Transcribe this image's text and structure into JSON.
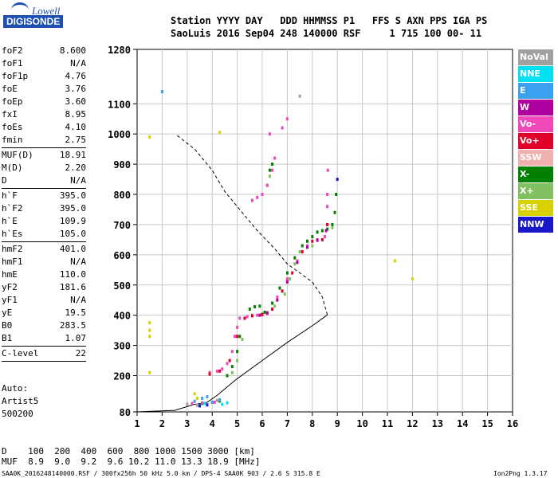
{
  "logo": {
    "line1": "Lowell",
    "line2": "DIGISONDE"
  },
  "header": {
    "row1": "Station YYYY DAY   DDD HHMMSS P1   FFS S AXN PPS IGA PS",
    "row2": "SaoLuis 2016 Sep04 248 140000 RSF     1 715 100 00- 11"
  },
  "params": [
    {
      "label": "foF2",
      "value": "8.600"
    },
    {
      "label": "foF1",
      "value": "N/A"
    },
    {
      "label": "foF1p",
      "value": "4.76"
    },
    {
      "label": "foE",
      "value": "3.76"
    },
    {
      "label": "foEp",
      "value": "3.60"
    },
    {
      "label": "fxI",
      "value": "8.95"
    },
    {
      "label": "foEs",
      "value": "4.10"
    },
    {
      "label": "fmin",
      "value": "2.75"
    },
    {
      "sep": true
    },
    {
      "label": "MUF(D)",
      "value": "18.91"
    },
    {
      "label": "M(D)",
      "value": "2.20"
    },
    {
      "label": "D",
      "value": "N/A"
    },
    {
      "sep": true
    },
    {
      "label": "h`F",
      "value": "395.0"
    },
    {
      "label": "h`F2",
      "value": "395.0"
    },
    {
      "label": "h`E",
      "value": "109.9"
    },
    {
      "label": "h`Es",
      "value": "105.0"
    },
    {
      "sep": true
    },
    {
      "label": "hmF2",
      "value": "401.0"
    },
    {
      "label": "hmF1",
      "value": "N/A"
    },
    {
      "label": "hmE",
      "value": "110.0"
    },
    {
      "label": "yF2",
      "value": "181.6"
    },
    {
      "label": "yF1",
      "value": "N/A"
    },
    {
      "label": "yE",
      "value": "19.5"
    },
    {
      "label": "B0",
      "value": "283.5"
    },
    {
      "label": "B1",
      "value": "1.07"
    },
    {
      "sep": true
    },
    {
      "label": "C-level",
      "value": "22"
    },
    {
      "sep": true
    }
  ],
  "auto": {
    "line1": "Auto:",
    "line2": "Artist5",
    "line3": "500200"
  },
  "legend": [
    {
      "label": "NoVal",
      "color": "#a0a0a0"
    },
    {
      "label": "NNE",
      "color": "#00e0f0"
    },
    {
      "label": "E",
      "color": "#3aa0f0"
    },
    {
      "label": "W",
      "color": "#b000a0"
    },
    {
      "label": "Vo-",
      "color": "#f048b8"
    },
    {
      "label": "Vo+",
      "color": "#e00028"
    },
    {
      "label": "SSW",
      "color": "#f0b0b0"
    },
    {
      "label": "X-",
      "color": "#008000"
    },
    {
      "label": "X+",
      "color": "#80c060"
    },
    {
      "label": "SSE",
      "color": "#d8d000"
    },
    {
      "label": "NNW",
      "color": "#1818c8"
    }
  ],
  "footer": {
    "row1": "D    100  200  400  600  800 1000 1500 3000 [km]",
    "row2": "MUF  8.9  9.0  9.2  9.6 10.2 11.0 13.3 18.9 [MHz]",
    "file": "SAA0K_2016248140000.RSF / 300fx256h 50 kHz 5.0 km / DPS-4 SAA0K 903 / 2.6 S 315.8 E",
    "version": "Ion2Png 1.3.17"
  },
  "chart_data": {
    "type": "scatter",
    "x_ticks": [
      "1",
      "2",
      "3",
      "4",
      "5",
      "6",
      "7",
      "8",
      "9",
      "10",
      "11",
      "12",
      "13",
      "14",
      "15",
      "16"
    ],
    "y_ticks": [
      "80",
      "200",
      "300",
      "400",
      "500",
      "600",
      "700",
      "800",
      "900",
      "1000",
      "1100",
      "1280"
    ],
    "xlim": [
      1,
      16
    ],
    "ylim": [
      80,
      1280
    ],
    "grid": true,
    "series": [
      {
        "name": "X-",
        "color": "#008000",
        "points": [
          [
            3.6,
            108
          ],
          [
            4.0,
            112
          ],
          [
            4.3,
            116
          ],
          [
            4.6,
            200
          ],
          [
            4.8,
            230
          ],
          [
            5.0,
            280
          ],
          [
            5.1,
            330
          ],
          [
            5.3,
            390
          ],
          [
            5.5,
            420
          ],
          [
            5.7,
            428
          ],
          [
            5.9,
            430
          ],
          [
            6.1,
            410
          ],
          [
            6.4,
            440
          ],
          [
            6.7,
            490
          ],
          [
            7.0,
            540
          ],
          [
            7.3,
            590
          ],
          [
            7.6,
            630
          ],
          [
            7.8,
            645
          ],
          [
            8.0,
            660
          ],
          [
            8.2,
            675
          ],
          [
            8.4,
            680
          ],
          [
            8.6,
            685
          ],
          [
            8.8,
            700
          ],
          [
            8.9,
            740
          ],
          [
            8.95,
            800
          ],
          [
            6.3,
            880
          ],
          [
            6.4,
            900
          ]
        ]
      },
      {
        "name": "X+",
        "color": "#80c060",
        "points": [
          [
            4.8,
            210
          ],
          [
            5.0,
            250
          ],
          [
            5.2,
            320
          ],
          [
            5.6,
            400
          ],
          [
            6.0,
            405
          ],
          [
            6.5,
            430
          ],
          [
            6.9,
            470
          ],
          [
            7.1,
            520
          ],
          [
            7.3,
            570
          ],
          [
            7.5,
            610
          ],
          [
            8.0,
            630
          ],
          [
            8.5,
            660
          ],
          [
            8.8,
            690
          ],
          [
            6.2,
            830
          ],
          [
            6.3,
            860
          ]
        ]
      },
      {
        "name": "Vo-",
        "color": "#f048b8",
        "points": [
          [
            3.2,
            108
          ],
          [
            3.6,
            110
          ],
          [
            4.1,
            112
          ],
          [
            3.9,
            210
          ],
          [
            4.2,
            215
          ],
          [
            4.4,
            222
          ],
          [
            4.6,
            240
          ],
          [
            4.8,
            280
          ],
          [
            4.9,
            330
          ],
          [
            5.0,
            360
          ],
          [
            5.1,
            390
          ],
          [
            5.4,
            395
          ],
          [
            5.8,
            400
          ],
          [
            6.2,
            405
          ],
          [
            6.6,
            460
          ],
          [
            7.0,
            520
          ],
          [
            7.4,
            580
          ],
          [
            7.8,
            630
          ],
          [
            8.2,
            650
          ],
          [
            8.5,
            660
          ],
          [
            8.6,
            700
          ],
          [
            8.6,
            760
          ],
          [
            8.6,
            800
          ],
          [
            8.62,
            880
          ],
          [
            5.6,
            780
          ],
          [
            5.8,
            790
          ],
          [
            6.0,
            800
          ],
          [
            6.2,
            830
          ],
          [
            6.4,
            880
          ],
          [
            6.5,
            920
          ],
          [
            6.8,
            1020
          ],
          [
            7.0,
            1050
          ],
          [
            6.3,
            1000
          ]
        ]
      },
      {
        "name": "Vo+",
        "color": "#e00028",
        "points": [
          [
            3.9,
            205
          ],
          [
            4.3,
            215
          ],
          [
            4.7,
            250
          ],
          [
            5.0,
            330
          ],
          [
            5.3,
            390
          ],
          [
            5.6,
            398
          ],
          [
            6.0,
            402
          ],
          [
            6.4,
            420
          ],
          [
            6.8,
            480
          ],
          [
            7.2,
            540
          ],
          [
            7.6,
            610
          ],
          [
            8.0,
            645
          ],
          [
            8.4,
            650
          ],
          [
            8.6,
            700
          ]
        ]
      },
      {
        "name": "W",
        "color": "#b000a0",
        "points": [
          [
            5.9,
            400
          ],
          [
            6.2,
            408
          ],
          [
            6.6,
            450
          ],
          [
            7.0,
            510
          ],
          [
            7.4,
            575
          ],
          [
            7.8,
            625
          ],
          [
            8.2,
            648
          ],
          [
            8.55,
            680
          ]
        ]
      },
      {
        "name": "E",
        "color": "#3aa0f0",
        "points": [
          [
            3.3,
            115
          ],
          [
            3.6,
            125
          ],
          [
            3.8,
            130
          ],
          [
            4.0,
            112
          ],
          [
            4.3,
            120
          ],
          [
            2.0,
            1140
          ]
        ]
      },
      {
        "name": "SSE",
        "color": "#d8d000",
        "points": [
          [
            1.5,
            210
          ],
          [
            1.5,
            330
          ],
          [
            1.5,
            350
          ],
          [
            1.5,
            375
          ],
          [
            1.5,
            990
          ],
          [
            3.3,
            140
          ],
          [
            3.4,
            125
          ],
          [
            11.3,
            580
          ],
          [
            12.0,
            520
          ],
          [
            4.3,
            1005
          ]
        ]
      },
      {
        "name": "NNW",
        "color": "#1818c8",
        "points": [
          [
            3.5,
            100
          ],
          [
            3.8,
            103
          ],
          [
            9.0,
            850
          ]
        ]
      },
      {
        "name": "NNE",
        "color": "#00e0f0",
        "points": [
          [
            3.7,
            108
          ],
          [
            4.4,
            105
          ],
          [
            4.6,
            110
          ]
        ]
      },
      {
        "name": "NoVal",
        "color": "#a0a0a0",
        "points": [
          [
            3.0,
            105
          ],
          [
            3.4,
            102
          ],
          [
            4.2,
            118
          ],
          [
            7.5,
            1125
          ]
        ]
      }
    ],
    "profile_line": [
      [
        1,
        80
      ],
      [
        2.5,
        85
      ],
      [
        3.3,
        105
      ],
      [
        3.76,
        110
      ],
      [
        4.2,
        135
      ],
      [
        5.0,
        190
      ],
      [
        6.0,
        250
      ],
      [
        7.0,
        310
      ],
      [
        8.0,
        365
      ],
      [
        8.6,
        401
      ]
    ],
    "profile_topside_dashed": [
      [
        8.6,
        401
      ],
      [
        8.4,
        460
      ],
      [
        8.0,
        510
      ],
      [
        7.5,
        540
      ],
      [
        7.0,
        570
      ],
      [
        6.5,
        620
      ],
      [
        5.8,
        680
      ],
      [
        5.2,
        740
      ],
      [
        4.5,
        810
      ],
      [
        4.0,
        880
      ],
      [
        3.3,
        950
      ],
      [
        2.6,
        995
      ]
    ]
  }
}
